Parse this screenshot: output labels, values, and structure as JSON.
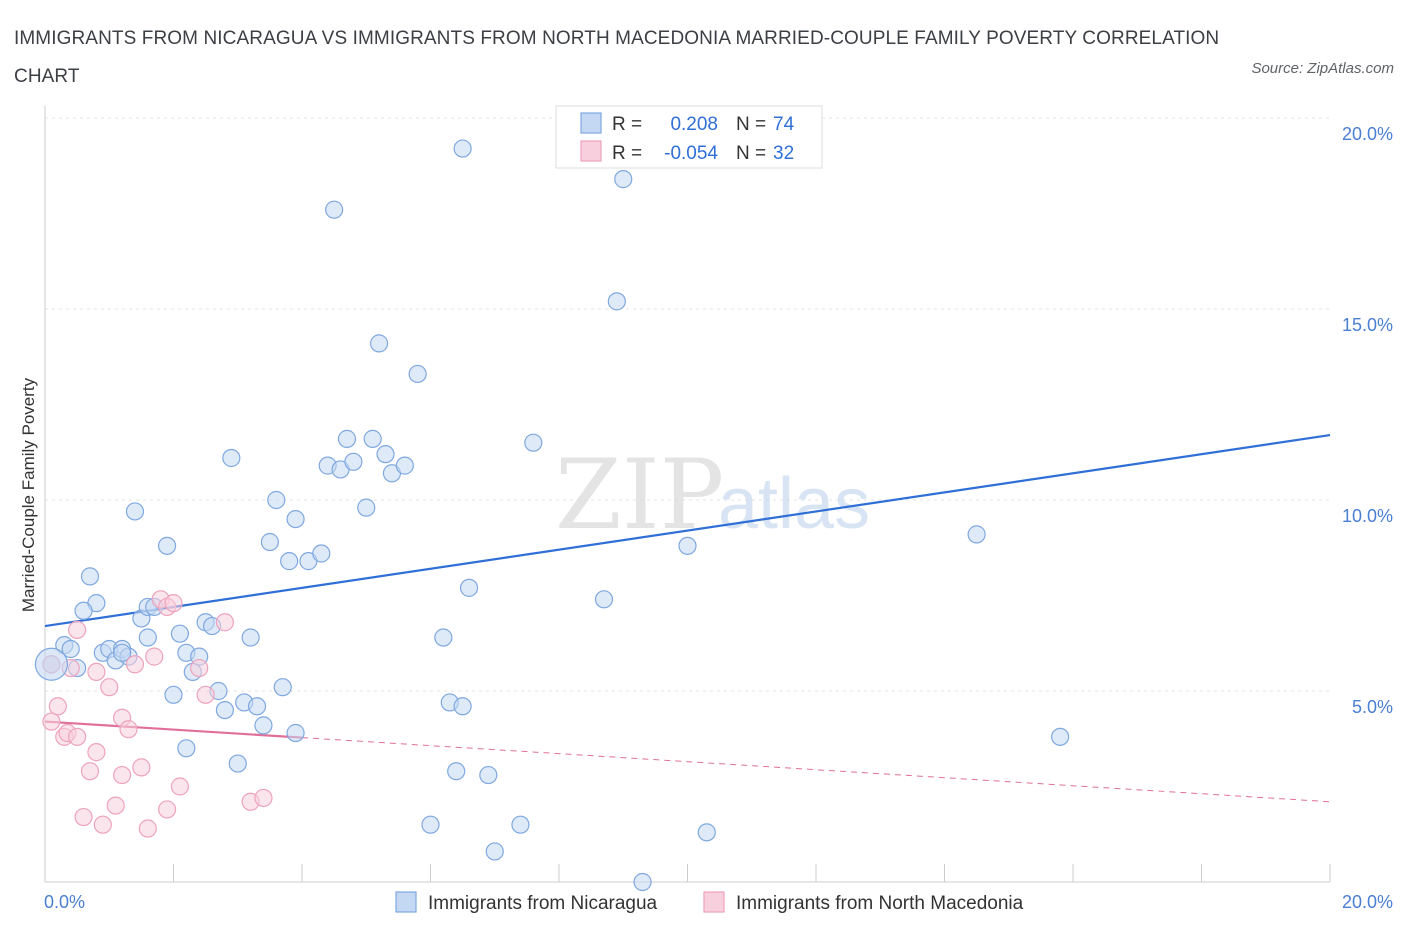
{
  "header": {
    "title": "IMMIGRANTS FROM NICARAGUA VS IMMIGRANTS FROM NORTH MACEDONIA MARRIED-COUPLE FAMILY POVERTY CORRELATION CHART",
    "source": "Source: ZipAtlas.com"
  },
  "watermark": {
    "zip": "ZIP",
    "atlas": "atlas"
  },
  "chart_data": {
    "type": "scatter",
    "title": "IMMIGRANTS FROM NICARAGUA VS IMMIGRANTS FROM NORTH MACEDONIA MARRIED-COUPLE FAMILY POVERTY CORRELATION CHART",
    "xlabel": "",
    "ylabel": "Married-Couple Family Poverty",
    "xlim": [
      0,
      20
    ],
    "ylim": [
      0,
      20
    ],
    "x_tick_labels": {
      "min": "0.0%",
      "max": "20.0%"
    },
    "y_tick_labels": [
      {
        "value": 20,
        "label": "20.0%"
      },
      {
        "value": 15,
        "label": "15.0%"
      },
      {
        "value": 10,
        "label": "10.0%"
      },
      {
        "value": 5,
        "label": "5.0%"
      }
    ],
    "grid": true,
    "legend_placement": "top-center",
    "stats": [
      {
        "r_label": "R =",
        "r_value": "0.208",
        "n_label": "N =",
        "n_value": "74"
      },
      {
        "r_label": "R =",
        "r_value": "-0.054",
        "n_label": "N =",
        "n_value": "32"
      }
    ],
    "series": [
      {
        "name": "Immigrants from Nicaragua",
        "color": "#7fa8e0",
        "fill": "#c5d8f3",
        "line_color": "#2f6fd6",
        "trend": {
          "x": [
            0,
            20
          ],
          "y": [
            6.7,
            11.7
          ]
        },
        "points": [
          [
            0.1,
            5.7
          ],
          [
            0.3,
            6.2
          ],
          [
            0.4,
            6.1
          ],
          [
            0.5,
            5.6
          ],
          [
            0.7,
            8.0
          ],
          [
            0.8,
            7.3
          ],
          [
            0.6,
            7.1
          ],
          [
            0.9,
            6.0
          ],
          [
            1.0,
            6.1
          ],
          [
            1.1,
            5.8
          ],
          [
            1.2,
            6.1
          ],
          [
            1.3,
            5.9
          ],
          [
            1.4,
            9.7
          ],
          [
            1.5,
            6.9
          ],
          [
            1.6,
            7.2
          ],
          [
            1.6,
            6.4
          ],
          [
            1.7,
            7.2
          ],
          [
            1.9,
            8.8
          ],
          [
            2.0,
            4.9
          ],
          [
            2.1,
            6.5
          ],
          [
            2.2,
            6.0
          ],
          [
            2.3,
            5.5
          ],
          [
            2.4,
            5.9
          ],
          [
            2.5,
            6.8
          ],
          [
            2.6,
            6.7
          ],
          [
            2.7,
            5.0
          ],
          [
            2.8,
            4.5
          ],
          [
            2.9,
            11.1
          ],
          [
            3.0,
            3.1
          ],
          [
            3.1,
            4.7
          ],
          [
            3.2,
            6.4
          ],
          [
            3.3,
            4.6
          ],
          [
            3.4,
            4.1
          ],
          [
            3.5,
            8.9
          ],
          [
            3.6,
            10.0
          ],
          [
            3.7,
            5.1
          ],
          [
            3.8,
            8.4
          ],
          [
            3.9,
            3.9
          ],
          [
            3.9,
            9.5
          ],
          [
            4.1,
            8.4
          ],
          [
            4.3,
            8.6
          ],
          [
            4.4,
            10.9
          ],
          [
            4.5,
            17.6
          ],
          [
            4.6,
            10.8
          ],
          [
            4.7,
            11.6
          ],
          [
            4.8,
            11.0
          ],
          [
            5.0,
            9.8
          ],
          [
            5.1,
            11.6
          ],
          [
            5.2,
            14.1
          ],
          [
            5.3,
            11.2
          ],
          [
            5.4,
            10.7
          ],
          [
            5.6,
            10.9
          ],
          [
            5.8,
            13.3
          ],
          [
            6.0,
            1.5
          ],
          [
            6.2,
            6.4
          ],
          [
            6.3,
            4.7
          ],
          [
            6.4,
            2.9
          ],
          [
            6.5,
            4.6
          ],
          [
            6.5,
            19.2
          ],
          [
            6.6,
            7.7
          ],
          [
            6.9,
            2.8
          ],
          [
            7.0,
            0.8
          ],
          [
            7.4,
            1.5
          ],
          [
            7.6,
            11.5
          ],
          [
            8.7,
            7.4
          ],
          [
            8.9,
            15.2
          ],
          [
            9.0,
            18.4
          ],
          [
            9.3,
            0.0
          ],
          [
            10.0,
            8.8
          ],
          [
            10.3,
            1.3
          ],
          [
            14.5,
            9.1
          ],
          [
            15.8,
            3.8
          ],
          [
            1.2,
            6.0
          ],
          [
            2.2,
            3.5
          ]
        ]
      },
      {
        "name": "Immigrants from North Macedonia",
        "color": "#eda3bd",
        "fill": "#f7cfdd",
        "line_color": "#e0709a",
        "trend": {
          "x": [
            0,
            20
          ],
          "y": [
            4.2,
            2.1
          ],
          "solid_until": 4.0
        },
        "points": [
          [
            0.1,
            5.7
          ],
          [
            0.1,
            4.2
          ],
          [
            0.2,
            4.6
          ],
          [
            0.3,
            3.8
          ],
          [
            0.35,
            3.9
          ],
          [
            0.4,
            5.6
          ],
          [
            0.5,
            6.6
          ],
          [
            0.5,
            3.8
          ],
          [
            0.6,
            1.7
          ],
          [
            0.7,
            2.9
          ],
          [
            0.8,
            5.5
          ],
          [
            0.8,
            3.4
          ],
          [
            0.9,
            1.5
          ],
          [
            1.0,
            5.1
          ],
          [
            1.1,
            2.0
          ],
          [
            1.2,
            2.8
          ],
          [
            1.2,
            4.3
          ],
          [
            1.3,
            4.0
          ],
          [
            1.4,
            5.7
          ],
          [
            1.5,
            3.0
          ],
          [
            1.6,
            1.4
          ],
          [
            1.7,
            5.9
          ],
          [
            1.8,
            7.4
          ],
          [
            1.9,
            1.9
          ],
          [
            1.9,
            7.2
          ],
          [
            2.0,
            7.3
          ],
          [
            2.1,
            2.5
          ],
          [
            2.4,
            5.6
          ],
          [
            2.5,
            4.9
          ],
          [
            2.8,
            6.8
          ],
          [
            3.2,
            2.1
          ],
          [
            3.4,
            2.2
          ]
        ]
      }
    ]
  },
  "bottom_legend": [
    {
      "label": "Immigrants from Nicaragua"
    },
    {
      "label": "Immigrants from North Macedonia"
    }
  ]
}
